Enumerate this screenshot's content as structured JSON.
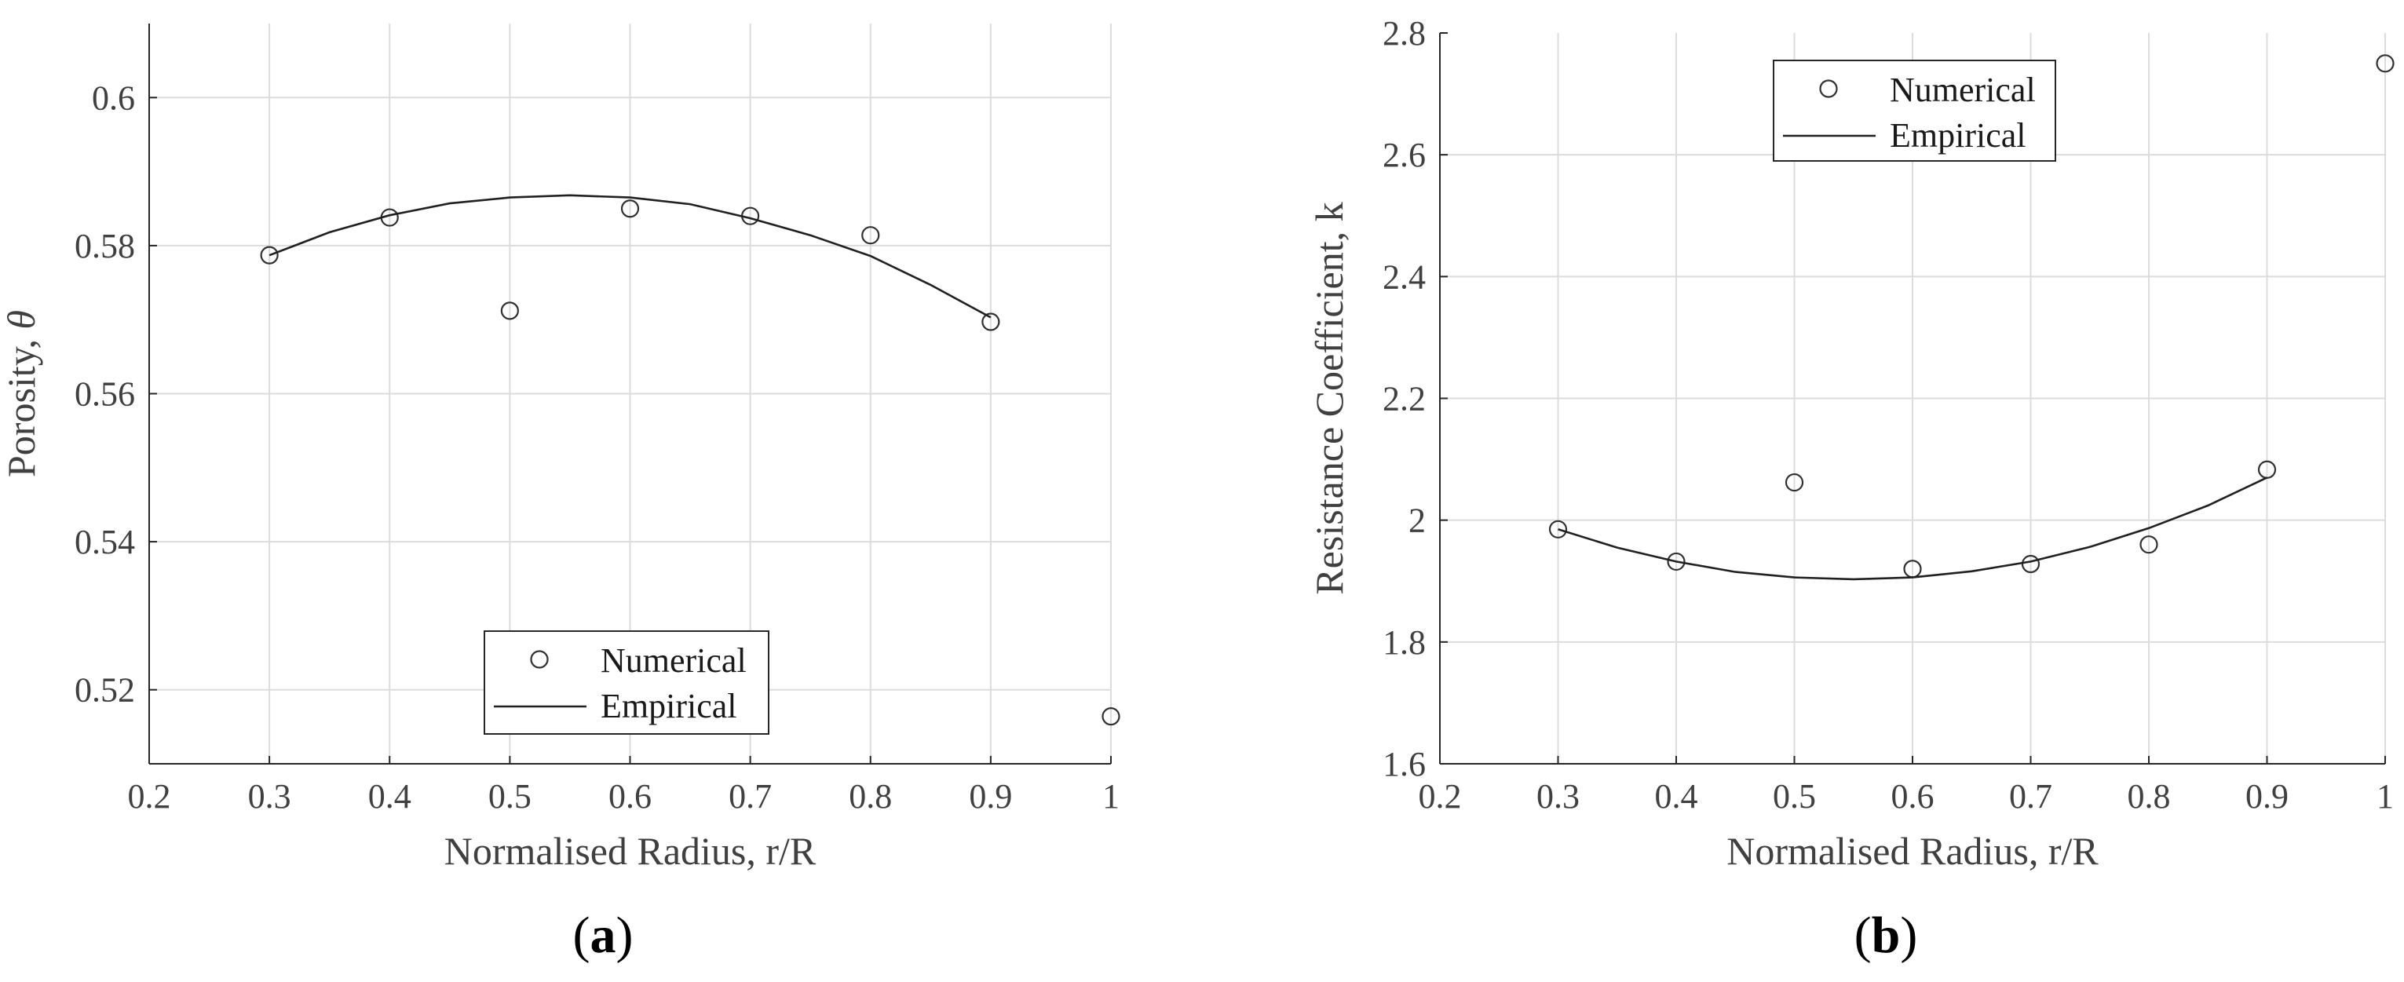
{
  "chart_data": [
    {
      "type": "scatter",
      "panel_label": "a",
      "xlabel": "Normalised Radius, r/R",
      "ylabel": "Porosity, ",
      "ylabel_symbol": "θ",
      "xlim": [
        0.2,
        1.0
      ],
      "ylim": [
        0.51,
        0.61
      ],
      "x_ticks": [
        "0.2",
        "0.3",
        "0.4",
        "0.5",
        "0.6",
        "0.7",
        "0.8",
        "0.9",
        "1"
      ],
      "y_ticks": [
        "0.52",
        "0.54",
        "0.56",
        "0.58",
        "0.6"
      ],
      "grid": true,
      "legend_position": "bottom-center",
      "series": [
        {
          "name": "Numerical",
          "style": "open-circle",
          "x": [
            0.3,
            0.4,
            0.5,
            0.6,
            0.7,
            0.8,
            0.9,
            1.0
          ],
          "y": [
            0.5787,
            0.5838,
            0.5712,
            0.585,
            0.584,
            0.5814,
            0.5697,
            0.5164
          ]
        },
        {
          "name": "Empirical",
          "style": "line",
          "x": [
            0.3,
            0.35,
            0.4,
            0.45,
            0.5,
            0.55,
            0.6,
            0.65,
            0.7,
            0.75,
            0.8,
            0.85,
            0.9
          ],
          "y": [
            0.5787,
            0.5818,
            0.5841,
            0.5857,
            0.5865,
            0.5868,
            0.5865,
            0.5856,
            0.5837,
            0.5814,
            0.5786,
            0.5747,
            0.5703
          ]
        }
      ]
    },
    {
      "type": "scatter",
      "panel_label": "b",
      "xlabel": "Normalised Radius, r/R",
      "ylabel": "Resistance Coefficient, k",
      "xlim": [
        0.2,
        1.0
      ],
      "ylim": [
        1.6,
        2.8
      ],
      "x_ticks": [
        "0.2",
        "0.3",
        "0.4",
        "0.5",
        "0.6",
        "0.7",
        "0.8",
        "0.9",
        "1"
      ],
      "y_ticks": [
        "1.6",
        "1.8",
        "2",
        "2.2",
        "2.4",
        "2.6",
        "2.8"
      ],
      "grid": true,
      "legend_position": "top-center",
      "series": [
        {
          "name": "Numerical",
          "style": "open-circle",
          "x": [
            0.3,
            0.4,
            0.5,
            0.6,
            0.7,
            0.8,
            0.9,
            1.0
          ],
          "y": [
            1.985,
            1.932,
            2.062,
            1.92,
            1.928,
            1.96,
            2.083,
            2.75
          ]
        },
        {
          "name": "Empirical",
          "style": "line",
          "x": [
            0.3,
            0.35,
            0.4,
            0.45,
            0.5,
            0.55,
            0.6,
            0.65,
            0.7,
            0.75,
            0.8,
            0.85,
            0.9
          ],
          "y": [
            1.985,
            1.955,
            1.932,
            1.915,
            1.906,
            1.903,
            1.906,
            1.916,
            1.932,
            1.956,
            1.987,
            2.024,
            2.07
          ]
        }
      ]
    }
  ]
}
